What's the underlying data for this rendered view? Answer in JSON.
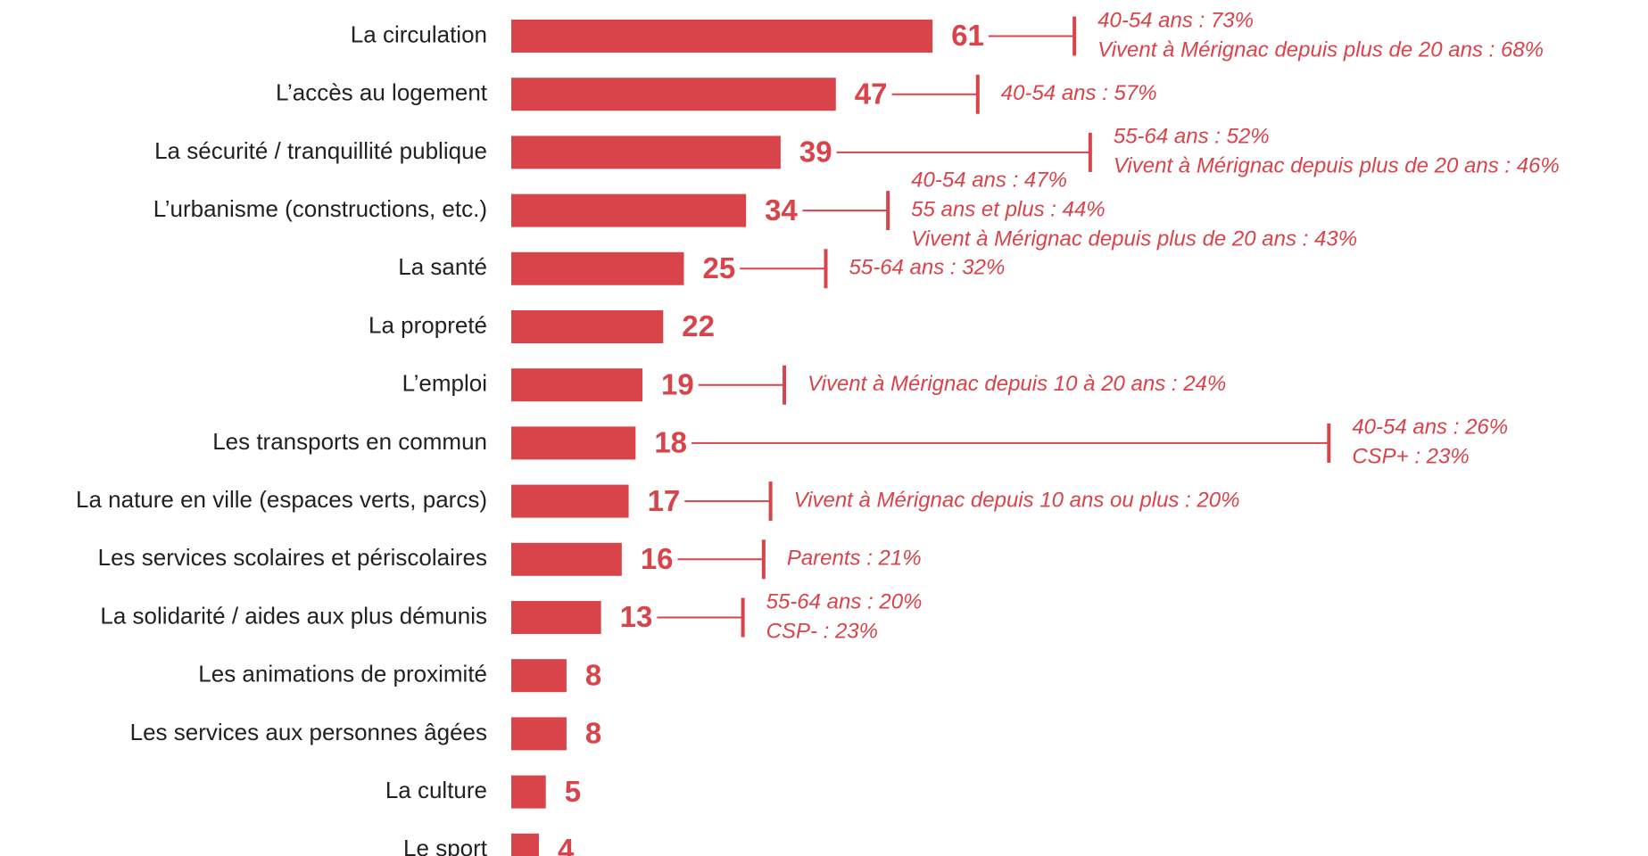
{
  "chart_data": {
    "type": "bar",
    "orientation": "horizontal",
    "color": "#d9434a",
    "categories": [
      "La circulation",
      "L’accès au logement",
      "La sécurité / tranquillité publique",
      "L’urbanisme (constructions, etc.)",
      "La santé",
      "La propreté",
      "L’emploi",
      "Les transports en commun",
      "La nature en ville (espaces verts, parcs)",
      "Les services scolaires et périscolaires",
      "La solidarité / aides aux plus démunis",
      "Les animations de proximité",
      "Les services aux personnes âgées",
      "La culture",
      "Le sport"
    ],
    "values": [
      61,
      47,
      39,
      34,
      25,
      22,
      19,
      18,
      17,
      16,
      13,
      8,
      8,
      5,
      4
    ],
    "annotations": [
      [
        "40-54 ans : 73%",
        "Vivent à Mérignac depuis plus de 20 ans : 68%"
      ],
      [
        "40-54 ans : 57%"
      ],
      [
        "55-64 ans : 52%",
        "Vivent à Mérignac depuis plus de 20 ans : 46%"
      ],
      [
        "40-54 ans : 47%",
        "55 ans et plus : 44%",
        "Vivent à Mérignac depuis plus de 20 ans : 43%"
      ],
      [
        "55-64 ans : 32%"
      ],
      null,
      [
        "Vivent à Mérignac depuis 10 à 20 ans : 24%"
      ],
      [
        "40-54 ans : 26%",
        "CSP+ : 23%"
      ],
      [
        "Vivent à Mérignac depuis 10 ans ou plus : 20%"
      ],
      [
        "Parents : 21%"
      ],
      [
        "55-64 ans : 20%",
        "CSP- : 23%"
      ],
      null,
      null,
      null,
      null
    ]
  }
}
